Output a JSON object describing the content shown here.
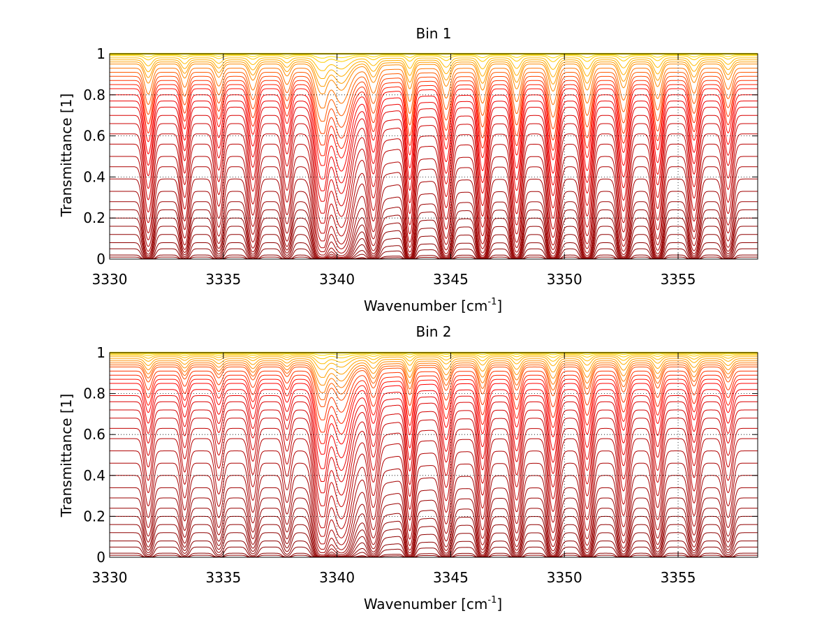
{
  "chart_data": [
    {
      "type": "line",
      "title": "Bin 1",
      "xlabel": "Wavenumber [cm",
      "xlabel_sup": "-1",
      "xlabel_suffix": "]",
      "ylabel": "Transmittance [1]",
      "xlim": [
        3330,
        3358.5
      ],
      "ylim": [
        0,
        1
      ],
      "xticks": [
        3330,
        3335,
        3340,
        3345,
        3350,
        3355
      ],
      "yticks": [
        0,
        0.2,
        0.4,
        0.6,
        0.8,
        1
      ],
      "xticklabels": [
        "3330",
        "3335",
        "3340",
        "3345",
        "3350",
        "3355"
      ],
      "yticklabels": [
        "0",
        "0.2",
        "0.4",
        "0.6",
        "0.8",
        "1"
      ],
      "grid": true,
      "legend": "none",
      "line_color_range": [
        "#8b0000",
        "#ff0000",
        "#ff9900",
        "#ffee00"
      ],
      "absorption_lines": [
        {
          "x": 3331.7,
          "depth": 0.62,
          "width": 0.16
        },
        {
          "x": 3333.3,
          "depth": 0.45,
          "width": 0.14
        },
        {
          "x": 3334.8,
          "depth": 0.42,
          "width": 0.15
        },
        {
          "x": 3336.3,
          "depth": 0.52,
          "width": 0.16
        },
        {
          "x": 3337.8,
          "depth": 0.38,
          "width": 0.15
        },
        {
          "x": 3339.3,
          "depth": 0.97,
          "width": 0.22
        },
        {
          "x": 3340.2,
          "depth": 0.75,
          "width": 0.3
        },
        {
          "x": 3341.6,
          "depth": 0.55,
          "width": 0.17
        },
        {
          "x": 3343.2,
          "depth": 0.8,
          "width": 0.14
        },
        {
          "x": 3344.8,
          "depth": 0.72,
          "width": 0.17
        },
        {
          "x": 3346.4,
          "depth": 0.86,
          "width": 0.16
        },
        {
          "x": 3347.9,
          "depth": 0.82,
          "width": 0.16
        },
        {
          "x": 3349.5,
          "depth": 0.9,
          "width": 0.17
        },
        {
          "x": 3351.0,
          "depth": 0.86,
          "width": 0.17
        },
        {
          "x": 3352.6,
          "depth": 0.78,
          "width": 0.17
        },
        {
          "x": 3354.1,
          "depth": 0.74,
          "width": 0.16
        },
        {
          "x": 3355.7,
          "depth": 0.6,
          "width": 0.16
        },
        {
          "x": 3357.2,
          "depth": 0.5,
          "width": 0.16
        }
      ],
      "baseline_transmittance": [
        1.0,
        0.995,
        0.99,
        0.98,
        0.97,
        0.96,
        0.95,
        0.93,
        0.91,
        0.89,
        0.87,
        0.85,
        0.83,
        0.8,
        0.77,
        0.74,
        0.7,
        0.66,
        0.61,
        0.56,
        0.5,
        0.45,
        0.39,
        0.33,
        0.28,
        0.24,
        0.2,
        0.16,
        0.12,
        0.08,
        0.05,
        0.02,
        0.01
      ]
    },
    {
      "type": "line",
      "title": "Bin 2",
      "xlabel": "Wavenumber [cm",
      "xlabel_sup": "-1",
      "xlabel_suffix": "]",
      "ylabel": "Transmittance [1]",
      "xlim": [
        3330,
        3358.5
      ],
      "ylim": [
        0,
        1
      ],
      "xticks": [
        3330,
        3335,
        3340,
        3345,
        3350,
        3355
      ],
      "yticks": [
        0,
        0.2,
        0.4,
        0.6,
        0.8,
        1
      ],
      "xticklabels": [
        "3330",
        "3335",
        "3340",
        "3345",
        "3350",
        "3355"
      ],
      "yticklabels": [
        "0",
        "0.2",
        "0.4",
        "0.6",
        "0.8",
        "1"
      ],
      "grid": true,
      "legend": "none",
      "line_color_range": [
        "#8b0000",
        "#ff0000",
        "#ff9900",
        "#ffee00"
      ],
      "absorption_lines": [
        {
          "x": 3331.7,
          "depth": 0.35,
          "width": 0.15
        },
        {
          "x": 3333.3,
          "depth": 0.28,
          "width": 0.14
        },
        {
          "x": 3334.8,
          "depth": 0.25,
          "width": 0.15
        },
        {
          "x": 3336.3,
          "depth": 0.3,
          "width": 0.15
        },
        {
          "x": 3337.8,
          "depth": 0.22,
          "width": 0.14
        },
        {
          "x": 3339.3,
          "depth": 0.97,
          "width": 0.22
        },
        {
          "x": 3340.2,
          "depth": 0.7,
          "width": 0.3
        },
        {
          "x": 3341.6,
          "depth": 0.45,
          "width": 0.17
        },
        {
          "x": 3343.2,
          "depth": 0.65,
          "width": 0.14
        },
        {
          "x": 3344.8,
          "depth": 0.55,
          "width": 0.17
        },
        {
          "x": 3346.4,
          "depth": 0.65,
          "width": 0.16
        },
        {
          "x": 3347.9,
          "depth": 0.55,
          "width": 0.16
        },
        {
          "x": 3349.5,
          "depth": 0.7,
          "width": 0.17
        },
        {
          "x": 3351.0,
          "depth": 0.66,
          "width": 0.17
        },
        {
          "x": 3352.6,
          "depth": 0.6,
          "width": 0.17
        },
        {
          "x": 3354.1,
          "depth": 0.5,
          "width": 0.16
        },
        {
          "x": 3355.7,
          "depth": 0.45,
          "width": 0.16
        },
        {
          "x": 3357.2,
          "depth": 0.35,
          "width": 0.16
        }
      ],
      "baseline_transmittance": [
        1.0,
        0.997,
        0.993,
        0.987,
        0.98,
        0.97,
        0.96,
        0.95,
        0.94,
        0.93,
        0.91,
        0.89,
        0.87,
        0.85,
        0.82,
        0.79,
        0.76,
        0.72,
        0.68,
        0.63,
        0.58,
        0.52,
        0.46,
        0.4,
        0.34,
        0.29,
        0.24,
        0.2,
        0.16,
        0.12,
        0.08,
        0.05,
        0.02,
        0.01
      ]
    }
  ]
}
